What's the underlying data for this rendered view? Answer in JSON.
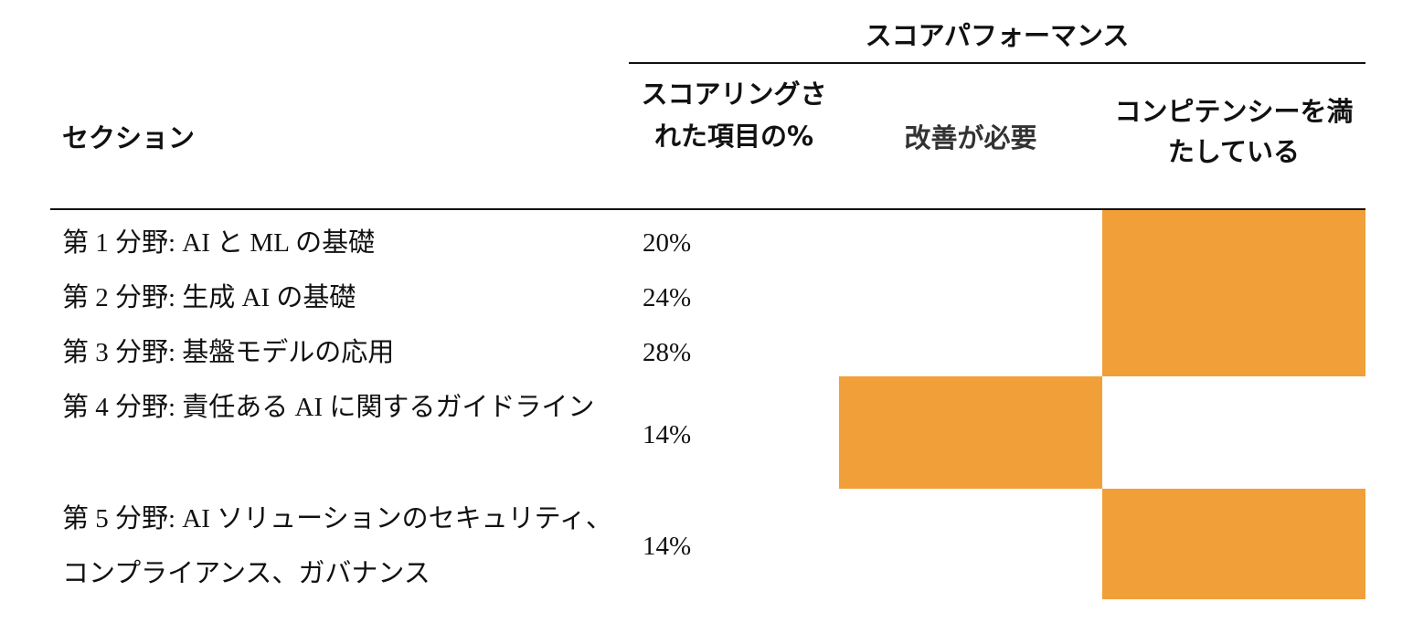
{
  "table": {
    "group_header": "スコアパフォーマンス",
    "columns": {
      "section": "セクション",
      "percent_scored": "スコアリングされた項目の%",
      "needs_improvement": "改善が必要",
      "meets_competency": "コンピテンシーを満たしている"
    },
    "highlight_color": "#f19f38",
    "rows": [
      {
        "section": "第 1 分野: AI と ML の基礎",
        "percent": "20%",
        "performance": "meets_competency"
      },
      {
        "section": "第 2 分野: 生成 AI の基礎",
        "percent": "24%",
        "performance": "meets_competency"
      },
      {
        "section": "第 3 分野: 基盤モデルの応用",
        "percent": "28%",
        "performance": "meets_competency"
      },
      {
        "section": "第 4 分野: 責任ある AI に関するガイドライン",
        "percent": "14%",
        "performance": "needs_improvement"
      },
      {
        "section": "第 5 分野: AI ソリューションのセキュリティ、コンプライアンス、ガバナンス",
        "percent": "14%",
        "performance": "meets_competency"
      }
    ]
  }
}
